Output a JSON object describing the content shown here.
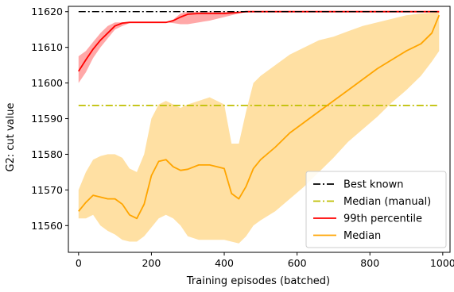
{
  "chart_data": {
    "type": "line",
    "title": "",
    "xlabel": "Training episodes (batched)",
    "ylabel": "G2: cut value",
    "xlim": [
      -28,
      1020
    ],
    "ylim": [
      11552.5,
      11621.5
    ],
    "xticks": [
      0,
      200,
      400,
      600,
      800,
      1000
    ],
    "yticks": [
      11560,
      11570,
      11580,
      11590,
      11600,
      11610,
      11620
    ],
    "grid": false,
    "legend_position": "lower-right",
    "series": [
      {
        "name": "Best known",
        "style": "dashdot",
        "color": "#000000",
        "x": [
          0,
          990
        ],
        "y": [
          11620,
          11620
        ]
      },
      {
        "name": "Median (manual)",
        "style": "dashdot",
        "color": "#bfbf00",
        "x": [
          0,
          990
        ],
        "y": [
          11593.7,
          11593.7
        ]
      },
      {
        "name": "99th percentile",
        "style": "solid",
        "color": "#ff0000",
        "band_color": "#ff9999",
        "x": [
          0,
          20,
          40,
          60,
          80,
          100,
          120,
          140,
          160,
          200,
          240,
          260,
          280,
          300,
          330,
          360,
          400,
          440,
          460,
          500,
          600,
          700,
          800,
          900,
          990
        ],
        "y": [
          11603.3,
          11606.5,
          11609.5,
          11612,
          11614,
          11616,
          11616.8,
          11617,
          11617,
          11617,
          11617,
          11617.5,
          11618.5,
          11619.3,
          11619.5,
          11619.5,
          11619.5,
          11619.8,
          11620,
          11620,
          11620,
          11620,
          11620,
          11620,
          11620
        ],
        "upper": [
          11607.5,
          11609,
          11611.5,
          11614,
          11616,
          11617,
          11617,
          11617,
          11617,
          11617,
          11617,
          11617.8,
          11619.5,
          11620,
          11620,
          11620,
          11620,
          11620,
          11620,
          11620,
          11620,
          11620,
          11620,
          11620,
          11620
        ],
        "lower": [
          11600,
          11603,
          11607,
          11610,
          11612.5,
          11615,
          11616,
          11616.8,
          11617,
          11617,
          11617,
          11616.8,
          11616.5,
          11616.5,
          11617,
          11617.5,
          11618.5,
          11619.5,
          11620,
          11620,
          11620,
          11620,
          11620,
          11620,
          11620
        ]
      },
      {
        "name": "Median",
        "style": "solid",
        "color": "#ffa500",
        "band_color": "#ffe0a3",
        "x": [
          0,
          20,
          40,
          60,
          80,
          100,
          120,
          140,
          160,
          180,
          200,
          220,
          240,
          260,
          280,
          300,
          330,
          360,
          400,
          420,
          440,
          460,
          480,
          500,
          540,
          580,
          620,
          660,
          700,
          740,
          780,
          820,
          860,
          900,
          940,
          970,
          990
        ],
        "y": [
          11564,
          11566.5,
          11568.5,
          11568,
          11567.5,
          11567.5,
          11566,
          11563,
          11562,
          11566,
          11574,
          11578,
          11578.5,
          11576.5,
          11575.5,
          11575.8,
          11577,
          11577,
          11576,
          11569,
          11567.5,
          11571,
          11576,
          11578.5,
          11582,
          11586,
          11589,
          11592,
          11595,
          11598,
          11601,
          11604,
          11606.5,
          11609,
          11611,
          11614,
          11619
        ],
        "upper": [
          11570,
          11575,
          11578.5,
          11579.5,
          11580,
          11580,
          11579,
          11576,
          11575,
          11580,
          11590,
          11594,
          11595,
          11594,
          11593,
          11594,
          11595,
          11596,
          11594,
          11583,
          11583,
          11592,
          11600,
          11602,
          11605,
          11608,
          11610,
          11612,
          11613,
          11614.5,
          11616,
          11617,
          11618,
          11619,
          11619.5,
          11619.7,
          11620
        ],
        "lower": [
          11562,
          11562,
          11563,
          11560,
          11558.5,
          11557.5,
          11556,
          11555.5,
          11555.5,
          11557,
          11559.5,
          11562,
          11563,
          11562,
          11560,
          11557,
          11556,
          11556,
          11556,
          11555.5,
          11555,
          11557,
          11560,
          11561.5,
          11564,
          11567.5,
          11571,
          11575,
          11579,
          11583.5,
          11587,
          11590.5,
          11594.5,
          11598,
          11602,
          11606,
          11609
        ]
      }
    ]
  }
}
